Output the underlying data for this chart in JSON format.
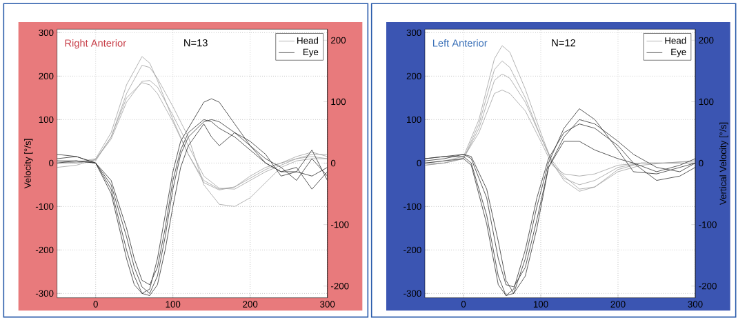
{
  "chart_data": [
    {
      "type": "line",
      "annotations": [
        "Right Anterior",
        "N=13"
      ],
      "ylabel": "Velocity [°/s]",
      "xlim": [
        -50,
        300
      ],
      "xticks": [
        0,
        100,
        200,
        300
      ],
      "ylim": [
        -310,
        308
      ],
      "yticks": [
        -300,
        -200,
        -100,
        0,
        100,
        200,
        300
      ],
      "y2lim": [
        -219,
        218
      ],
      "y2ticks": [
        -200,
        -100,
        0,
        100,
        200
      ],
      "grid": true,
      "legend": "top right",
      "marker": "none",
      "line_style": "solid",
      "series": [
        {
          "name": "Head",
          "color": "#a0a0a0",
          "x": [
            -50,
            -25,
            0,
            20,
            40,
            60,
            70,
            80,
            100,
            120,
            140,
            160,
            180,
            200,
            220,
            240,
            260,
            280,
            300
          ],
          "values": [
            0,
            2,
            10,
            70,
            180,
            245,
            230,
            190,
            100,
            20,
            -40,
            -60,
            -55,
            -35,
            -15,
            0,
            10,
            15,
            10
          ]
        },
        {
          "color": "#a0a0a0",
          "x": [
            -50,
            -25,
            0,
            20,
            40,
            60,
            70,
            80,
            100,
            120,
            140,
            160,
            180,
            200,
            220,
            240,
            260,
            280,
            300
          ],
          "values": [
            0,
            0,
            8,
            55,
            140,
            188,
            190,
            175,
            110,
            40,
            -30,
            -58,
            -60,
            -40,
            -20,
            -5,
            10,
            20,
            20
          ]
        },
        {
          "color": "#a0a0a0",
          "x": [
            -50,
            -25,
            0,
            20,
            40,
            60,
            70,
            80,
            100,
            120,
            140,
            160,
            180,
            200,
            220,
            240,
            260,
            280,
            300
          ],
          "values": [
            5,
            0,
            5,
            60,
            160,
            225,
            220,
            195,
            130,
            60,
            -50,
            -95,
            -100,
            -80,
            -45,
            -10,
            5,
            10,
            10
          ]
        },
        {
          "color": "#a0a0a0",
          "x": [
            -50,
            -25,
            0,
            20,
            40,
            60,
            70,
            80,
            100,
            120,
            140,
            160,
            180,
            200,
            220,
            240,
            260,
            280,
            300
          ],
          "values": [
            -10,
            -5,
            8,
            60,
            150,
            185,
            180,
            160,
            95,
            20,
            -45,
            -62,
            -55,
            -30,
            -10,
            0,
            15,
            25,
            15
          ]
        },
        {
          "name": "Eye",
          "color": "#303030",
          "x": [
            -50,
            -25,
            0,
            20,
            40,
            50,
            60,
            70,
            80,
            90,
            100,
            110,
            120,
            140,
            150,
            160,
            180,
            200,
            220,
            240,
            260,
            280,
            300
          ],
          "values": [
            10,
            15,
            0,
            -60,
            -200,
            -260,
            -300,
            -290,
            -220,
            -120,
            -20,
            50,
            80,
            140,
            148,
            140,
            90,
            40,
            0,
            -20,
            -20,
            -30,
            -10
          ]
        },
        {
          "color": "#303030",
          "x": [
            -50,
            -25,
            0,
            20,
            40,
            50,
            60,
            70,
            80,
            90,
            100,
            110,
            120,
            140,
            150,
            160,
            180,
            200,
            220,
            240,
            260,
            280,
            300
          ],
          "values": [
            5,
            5,
            0,
            -50,
            -170,
            -240,
            -285,
            -300,
            -260,
            -170,
            -60,
            20,
            60,
            95,
            100,
            95,
            70,
            40,
            10,
            -10,
            -40,
            10,
            -30
          ]
        },
        {
          "color": "#303030",
          "x": [
            -50,
            -25,
            0,
            20,
            40,
            50,
            60,
            70,
            80,
            90,
            100,
            110,
            120,
            140,
            150,
            160,
            180,
            200,
            220,
            240,
            260,
            280,
            300
          ],
          "values": [
            20,
            15,
            0,
            -70,
            -220,
            -280,
            -300,
            -305,
            -280,
            -200,
            -100,
            -10,
            40,
            90,
            60,
            40,
            70,
            50,
            20,
            -30,
            -20,
            30,
            -40
          ]
        },
        {
          "color": "#303030",
          "x": [
            -50,
            -25,
            0,
            20,
            40,
            50,
            60,
            70,
            80,
            90,
            100,
            110,
            120,
            140,
            150,
            160,
            180,
            200,
            220,
            240,
            260,
            280,
            300
          ],
          "values": [
            0,
            5,
            0,
            -40,
            -150,
            -220,
            -270,
            -280,
            -240,
            -150,
            -40,
            30,
            70,
            100,
            95,
            80,
            60,
            30,
            0,
            -20,
            -10,
            -60,
            -20
          ]
        }
      ]
    },
    {
      "type": "line",
      "annotations": [
        "Left Anterior",
        "N=12"
      ],
      "y2label": "Vertical Velocity [°/s]",
      "xlim": [
        -50,
        300
      ],
      "xticks": [
        0,
        100,
        200,
        300
      ],
      "ylim": [
        -310,
        308
      ],
      "yticks": [
        -300,
        -200,
        -100,
        0,
        100,
        200,
        300
      ],
      "y2lim": [
        -219,
        218
      ],
      "y2ticks": [
        -200,
        -100,
        0,
        100,
        200
      ],
      "grid": true,
      "legend": "top right",
      "marker": "none",
      "line_style": "solid",
      "series": [
        {
          "name": "Head",
          "color": "#a0a0a0",
          "x": [
            -50,
            -25,
            0,
            20,
            40,
            50,
            60,
            80,
            100,
            115,
            130,
            150,
            170,
            200,
            230,
            260,
            300
          ],
          "values": [
            0,
            5,
            15,
            100,
            240,
            270,
            255,
            170,
            70,
            0,
            -40,
            -65,
            -55,
            -15,
            0,
            0,
            5
          ]
        },
        {
          "color": "#a0a0a0",
          "x": [
            -50,
            -25,
            0,
            20,
            40,
            50,
            60,
            80,
            100,
            115,
            130,
            150,
            170,
            200,
            230,
            260,
            300
          ],
          "values": [
            -5,
            0,
            10,
            80,
            190,
            205,
            195,
            140,
            60,
            0,
            -35,
            -50,
            -40,
            -10,
            0,
            0,
            0
          ]
        },
        {
          "color": "#a0a0a0",
          "x": [
            -50,
            -25,
            0,
            20,
            40,
            50,
            60,
            80,
            100,
            115,
            130,
            150,
            170,
            200,
            230,
            260,
            300
          ],
          "values": [
            0,
            0,
            12,
            70,
            160,
            168,
            160,
            120,
            50,
            -5,
            -25,
            -30,
            -25,
            -5,
            0,
            0,
            0
          ]
        },
        {
          "color": "#a0a0a0",
          "x": [
            -50,
            -25,
            0,
            20,
            40,
            50,
            60,
            80,
            100,
            115,
            130,
            150,
            170,
            200,
            230,
            260,
            300
          ],
          "values": [
            -5,
            0,
            10,
            90,
            215,
            235,
            220,
            150,
            60,
            5,
            -30,
            -60,
            -55,
            -20,
            -5,
            0,
            5
          ]
        },
        {
          "name": "Eye",
          "color": "#303030",
          "x": [
            -50,
            -25,
            0,
            10,
            30,
            45,
            55,
            65,
            80,
            95,
            110,
            130,
            150,
            170,
            200,
            220,
            250,
            280,
            300
          ],
          "values": [
            10,
            15,
            15,
            0,
            -120,
            -260,
            -305,
            -300,
            -220,
            -100,
            0,
            80,
            125,
            100,
            30,
            -20,
            -25,
            -10,
            0
          ]
        },
        {
          "color": "#303030",
          "x": [
            -50,
            -25,
            0,
            10,
            30,
            45,
            55,
            65,
            80,
            95,
            110,
            130,
            150,
            170,
            200,
            220,
            250,
            280,
            300
          ],
          "values": [
            10,
            15,
            20,
            10,
            -80,
            -220,
            -280,
            -285,
            -240,
            -130,
            -10,
            60,
            100,
            90,
            50,
            20,
            -10,
            -20,
            0
          ]
        },
        {
          "color": "#303030",
          "x": [
            -50,
            -25,
            0,
            10,
            30,
            45,
            55,
            65,
            80,
            95,
            110,
            130,
            150,
            170,
            200,
            220,
            250,
            280,
            300
          ],
          "values": [
            5,
            10,
            20,
            15,
            -60,
            -180,
            -270,
            -300,
            -260,
            -150,
            -10,
            50,
            50,
            30,
            10,
            0,
            -40,
            -30,
            -10
          ]
        },
        {
          "color": "#303030",
          "x": [
            -50,
            -25,
            0,
            10,
            30,
            45,
            55,
            65,
            80,
            95,
            110,
            130,
            150,
            170,
            200,
            220,
            250,
            280,
            300
          ],
          "values": [
            0,
            5,
            10,
            -5,
            -140,
            -280,
            -305,
            -290,
            -200,
            -80,
            10,
            70,
            90,
            80,
            40,
            0,
            -20,
            -5,
            10
          ]
        }
      ]
    }
  ]
}
